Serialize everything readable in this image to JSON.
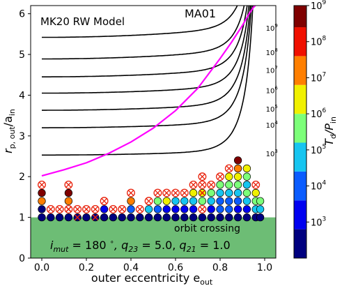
{
  "chart_data": {
    "type": "scatter",
    "title": "MK20 RW Model",
    "xlabel": "outer eccentricity e",
    "xlabel_sub": "out",
    "ylabel": "r",
    "ylabel_sub": "p, out",
    "ylabel_div": "/a",
    "ylabel_div_sub": "in",
    "xlim": [
      -0.05,
      1.05
    ],
    "ylim": [
      0,
      6.2
    ],
    "xticks": [
      0.0,
      0.2,
      0.4,
      0.6,
      0.8,
      1.0
    ],
    "xtick_labels": [
      "0.0",
      "0.2",
      "0.4",
      "0.6",
      "0.8",
      "1.0"
    ],
    "yticks": [
      0,
      1,
      2,
      3,
      4,
      5,
      6
    ],
    "ytick_labels": [
      "0",
      "1",
      "2",
      "3",
      "4",
      "5",
      "6"
    ],
    "grid": false,
    "orbit_crossing": {
      "label": "orbit crossing",
      "y_max": 1.0,
      "color": "#6dbd75"
    },
    "params_text": "i_mut = 180°, q23 = 5.0, q21 = 1.0",
    "params": {
      "i_prefix": "i",
      "i_sub": "mut",
      "i_val": " = 180 ",
      "deg": "∘",
      "q23_prefix": ", q",
      "q23_sub": "23",
      "q23_val": " = 5.0, ",
      "q21_prefix": "q",
      "q21_sub": "21",
      "q21_val": " = 1.0"
    },
    "ma01": {
      "label": "MA01",
      "color": "#ff00ff",
      "x": [
        0.0,
        0.1,
        0.2,
        0.3,
        0.4,
        0.5,
        0.6,
        0.7,
        0.8,
        0.85,
        0.9,
        0.93,
        0.95,
        0.97,
        0.98
      ],
      "y": [
        2.02,
        2.17,
        2.34,
        2.57,
        2.85,
        3.19,
        3.62,
        4.17,
        4.9,
        5.29,
        5.71,
        6.0,
        6.16,
        6.26,
        6.3
      ]
    },
    "contours": [
      {
        "label": "10⁹",
        "base": "10",
        "exp": "9",
        "y_base": 5.42,
        "label_y": 5.58
      },
      {
        "label": "10⁸",
        "base": "10",
        "exp": "8",
        "y_base": 4.89,
        "label_y": 4.98
      },
      {
        "label": "10⁷",
        "base": "10",
        "exp": "7",
        "y_base": 4.45,
        "label_y": 4.55
      },
      {
        "label": "10⁶",
        "base": "10",
        "exp": "6",
        "y_base": 4.05,
        "label_y": 4.05
      },
      {
        "label": "10⁵",
        "base": "10",
        "exp": "5",
        "y_base": 3.63,
        "label_y": 3.6
      },
      {
        "label": "10⁴",
        "base": "10",
        "exp": "4",
        "y_base": 3.2,
        "label_y": 3.2
      },
      {
        "label": "10³",
        "base": "10",
        "exp": "3",
        "y_base": 2.53,
        "label_y": 2.5
      }
    ],
    "colorbar": {
      "label": "T_d/P_in",
      "label_main": "T",
      "label_sub": "d",
      "label_div": "/P",
      "label_div_sub": "in",
      "tick_labels": [
        {
          "base": "10",
          "exp": "3",
          "value": 3
        },
        {
          "base": "10",
          "exp": "4",
          "value": 4
        },
        {
          "base": "10",
          "exp": "5",
          "value": 5
        },
        {
          "base": "10",
          "exp": "6",
          "value": 6
        },
        {
          "base": "10",
          "exp": "7",
          "value": 7
        },
        {
          "base": "10",
          "exp": "8",
          "value": 8
        },
        {
          "base": "10",
          "exp": "9",
          "value": 9
        }
      ],
      "bands": [
        {
          "from": 2.0,
          "to": 2.8,
          "color": "#00007f"
        },
        {
          "from": 2.8,
          "to": 3.6,
          "color": "#0000f0"
        },
        {
          "from": 3.6,
          "to": 4.4,
          "color": "#0a5cff"
        },
        {
          "from": 4.4,
          "to": 5.2,
          "color": "#16c5f0"
        },
        {
          "from": 5.2,
          "to": 6.0,
          "color": "#7cff79"
        },
        {
          "from": 6.0,
          "to": 6.8,
          "color": "#f0f000"
        },
        {
          "from": 6.8,
          "to": 7.6,
          "color": "#ff7f00"
        },
        {
          "from": 7.6,
          "to": 8.4,
          "color": "#f01000"
        },
        {
          "from": 8.4,
          "to": 9.0,
          "color": "#7f0000"
        }
      ],
      "range": [
        2.0,
        9.0
      ]
    },
    "points_x": [
      0.0,
      0.04,
      0.08,
      0.12,
      0.16,
      0.2,
      0.24,
      0.28,
      0.32,
      0.36,
      0.4,
      0.44,
      0.48,
      0.52,
      0.56,
      0.6,
      0.64,
      0.68,
      0.72,
      0.76,
      0.8,
      0.84,
      0.88,
      0.92,
      0.96,
      0.98
    ],
    "points_y": [
      1.0,
      1.2,
      1.4,
      1.6,
      1.8,
      2.0,
      2.2,
      2.4
    ],
    "columns": [
      [
        "0",
        "0",
        "7",
        "9",
        "x"
      ],
      [
        "0",
        "x"
      ],
      [
        "0",
        "x"
      ],
      [
        "0",
        "x",
        "7",
        "9",
        "x"
      ],
      [
        "0",
        "x"
      ],
      [
        "0",
        "x"
      ],
      [
        "0",
        "x"
      ],
      [
        "0",
        "2",
        "x"
      ],
      [
        "0",
        "x"
      ],
      [
        "0",
        "x"
      ],
      [
        "0",
        "3",
        "7",
        "x"
      ],
      [
        "0",
        "x"
      ],
      [
        "0",
        "4",
        "x"
      ],
      [
        "0",
        "3",
        "5",
        "x"
      ],
      [
        "0",
        "2",
        "6",
        "x"
      ],
      [
        "0",
        "2",
        "4",
        "x"
      ],
      [
        "0",
        "2",
        "4",
        "x"
      ],
      [
        "0",
        "2",
        "4",
        "6",
        "x"
      ],
      [
        "0",
        "x",
        "5",
        "6",
        "x",
        "x"
      ],
      [
        "0",
        "2",
        "4",
        "5",
        "x"
      ],
      [
        "0",
        "3",
        "3",
        "4",
        "5",
        "x"
      ],
      [
        "0",
        "3",
        "3",
        "4",
        "5",
        "6",
        "x"
      ],
      [
        "0",
        "2",
        "3",
        "4",
        "5",
        "6",
        "7",
        "9"
      ],
      [
        "0",
        "2",
        "4",
        "5",
        "4",
        "5",
        "6"
      ],
      [
        "0",
        "4",
        "5",
        "6",
        "x"
      ],
      [
        "0",
        "4",
        "5"
      ]
    ],
    "cross_positions": [
      {
        "x": 0.12,
        "y": 1.2
      },
      {
        "x": 0.16,
        "y": 1.0
      },
      {
        "x": 0.24,
        "y": 1.0
      },
      {
        "x": 0.72,
        "y": 1.6
      }
    ]
  }
}
